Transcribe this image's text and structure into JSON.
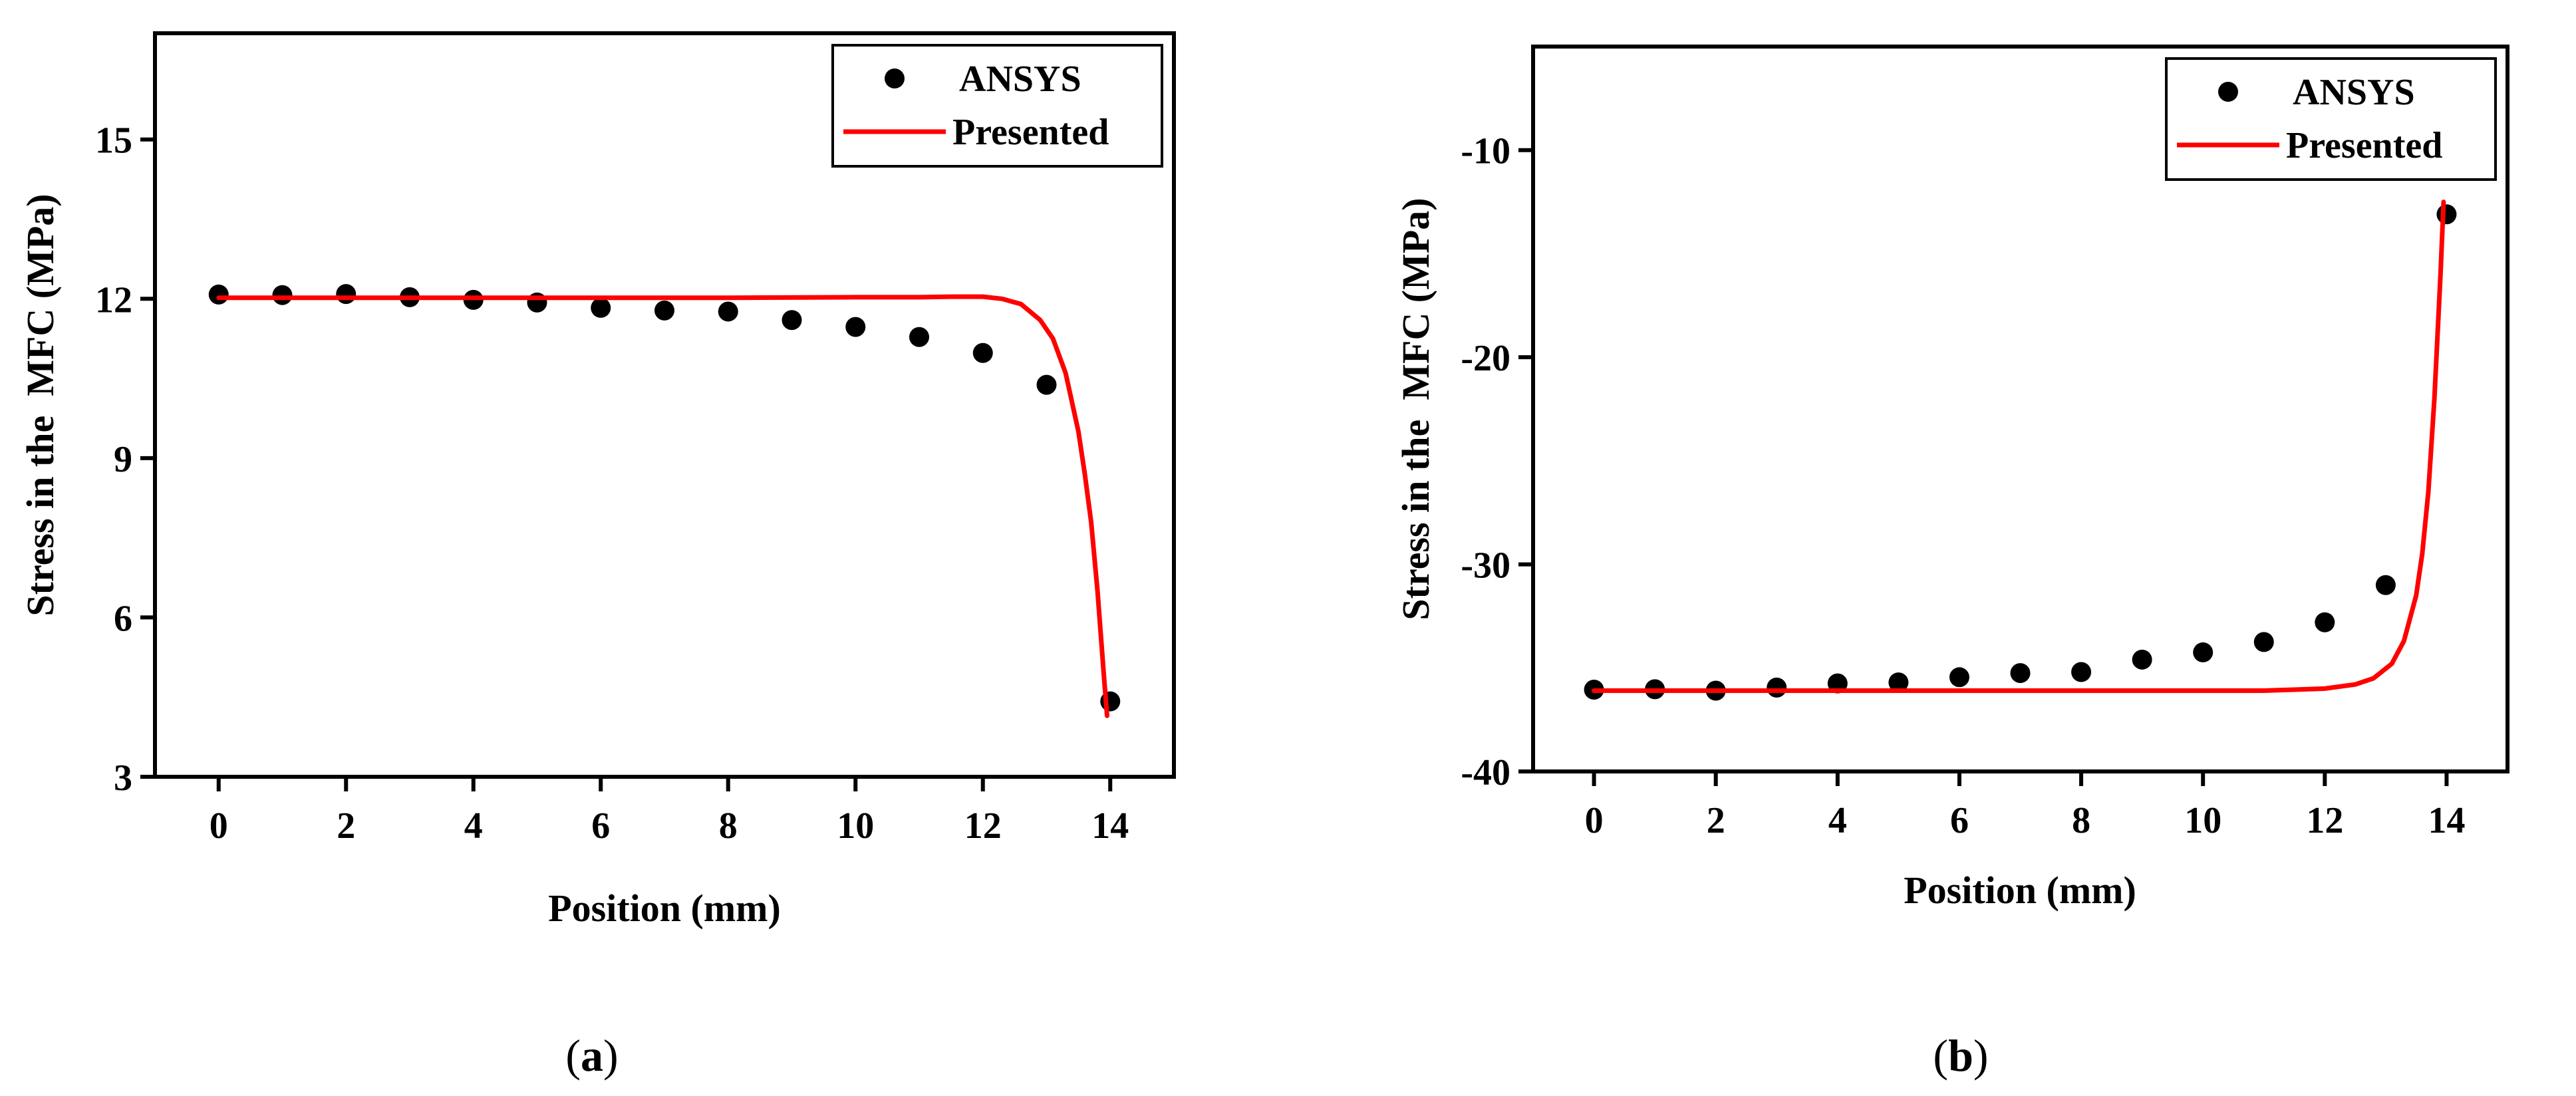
{
  "chart_data": [
    {
      "panel": "a",
      "caption": "(a)",
      "caption_letter": "a",
      "type": "scatter",
      "xlabel": "Position (mm)",
      "ylabel": "Stress in the  MFC (MPa)",
      "xlim": [
        -1,
        15
      ],
      "ylim": [
        3,
        17
      ],
      "xticks": [
        0,
        2,
        4,
        6,
        8,
        10,
        12,
        14
      ],
      "yticks": [
        3,
        6,
        9,
        12,
        15
      ],
      "legend_position": "top-right",
      "series": [
        {
          "name": "ANSYS",
          "kind": "scatter",
          "color": "#000000",
          "x": [
            0,
            1,
            2,
            3,
            4,
            5,
            6,
            7,
            8,
            9,
            10,
            11,
            12,
            13,
            14
          ],
          "y": [
            12.08,
            12.07,
            12.09,
            12.03,
            11.98,
            11.93,
            11.83,
            11.78,
            11.76,
            11.6,
            11.47,
            11.28,
            10.98,
            10.38,
            4.42
          ]
        },
        {
          "name": "Presented",
          "kind": "line",
          "color": "#ff0000",
          "x": [
            0,
            2,
            4,
            6,
            8,
            10,
            11,
            11.5,
            12,
            12.3,
            12.6,
            12.9,
            13.1,
            13.3,
            13.5,
            13.6,
            13.7,
            13.8,
            13.85,
            13.9,
            13.95
          ],
          "y": [
            12.02,
            12.02,
            12.02,
            12.02,
            12.02,
            12.03,
            12.03,
            12.04,
            12.04,
            12.0,
            11.9,
            11.6,
            11.25,
            10.6,
            9.5,
            8.7,
            7.8,
            6.5,
            5.7,
            4.9,
            4.15
          ]
        }
      ]
    },
    {
      "panel": "b",
      "caption": "(b)",
      "caption_letter": "b",
      "type": "scatter",
      "xlabel": "Position (mm)",
      "ylabel": "Stress in the  MFC (MPa)",
      "xlim": [
        -1,
        15
      ],
      "ylim": [
        -40,
        -5
      ],
      "xticks": [
        0,
        2,
        4,
        6,
        8,
        10,
        12,
        14
      ],
      "yticks": [
        -40,
        -30,
        -20,
        -10
      ],
      "legend_position": "top-right",
      "series": [
        {
          "name": "ANSYS",
          "kind": "scatter",
          "color": "#000000",
          "x": [
            0,
            1,
            2,
            3,
            4,
            5,
            6,
            7,
            8,
            9,
            10,
            11,
            12,
            13,
            14
          ],
          "y": [
            -36.05,
            -36.03,
            -36.1,
            -35.95,
            -35.75,
            -35.7,
            -35.45,
            -35.25,
            -35.2,
            -34.6,
            -34.25,
            -33.75,
            -32.8,
            -31.0,
            -13.1
          ]
        },
        {
          "name": "Presented",
          "kind": "line",
          "color": "#ff0000",
          "x": [
            0,
            2,
            4,
            6,
            8,
            10,
            11,
            11.5,
            12,
            12.5,
            12.8,
            13.1,
            13.3,
            13.5,
            13.6,
            13.7,
            13.8,
            13.9,
            13.95
          ],
          "y": [
            -36.1,
            -36.1,
            -36.1,
            -36.1,
            -36.1,
            -36.1,
            -36.1,
            -36.05,
            -36.0,
            -35.8,
            -35.5,
            -34.8,
            -33.7,
            -31.5,
            -29.5,
            -26.5,
            -22.0,
            -16.0,
            -12.5
          ]
        }
      ]
    }
  ]
}
